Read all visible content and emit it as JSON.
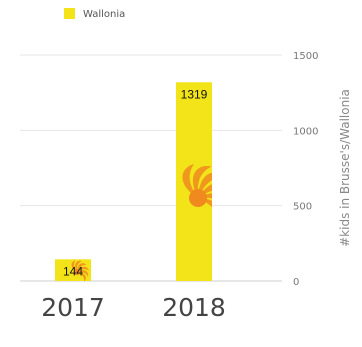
{
  "chart_data": {
    "type": "bar",
    "categories": [
      "2017",
      "2018"
    ],
    "series": [
      {
        "name": "Wallonia",
        "values": [
          144,
          1319
        ]
      }
    ],
    "data_labels": [
      "144",
      "1319"
    ],
    "ylabel": "#kids in Brusse's/Wallonia",
    "ylim": [
      0,
      1500
    ],
    "yticks": [
      0,
      500,
      1000,
      1500
    ],
    "ytick_labels": [
      "0",
      "500",
      "1000",
      "1500"
    ],
    "y_axis_side": "right",
    "grid": true,
    "legend_position": "top-left",
    "colors": {
      "bar": "#f2e418",
      "flame": "#f08a1e",
      "grid": "#e6e6e6"
    }
  }
}
